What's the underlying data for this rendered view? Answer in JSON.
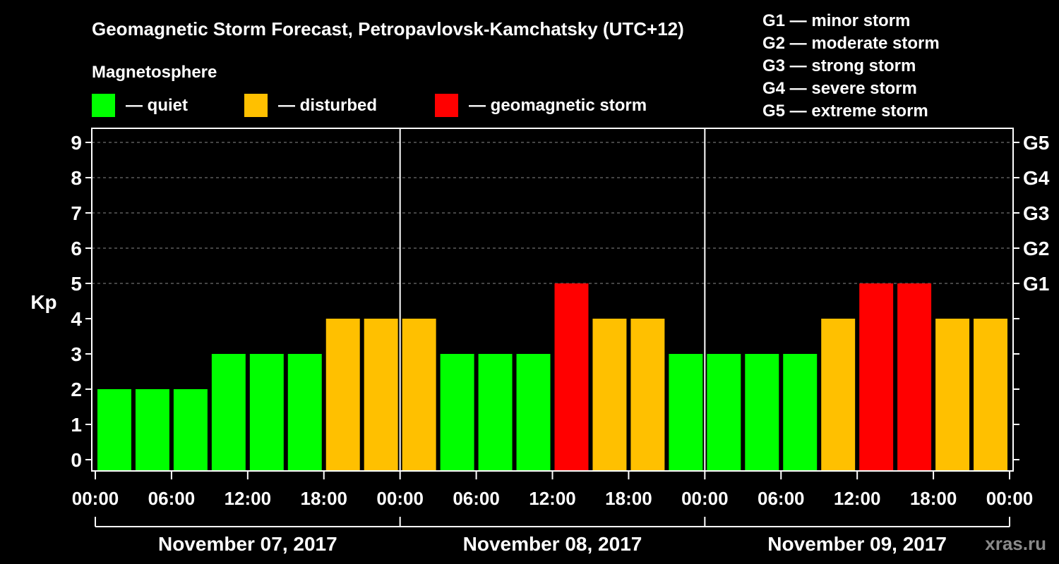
{
  "chart_data": {
    "type": "bar",
    "title": "Geomagnetic Storm Forecast, Petropavlovsk-Kamchatsky (UTC+12)",
    "ylabel": "Kp",
    "ylim": [
      0,
      9
    ],
    "y_ticks": [
      "0",
      "1",
      "2",
      "3",
      "4",
      "5",
      "6",
      "7",
      "8",
      "9"
    ],
    "g_levels": [
      {
        "kp": 5,
        "label": "G1"
      },
      {
        "kp": 6,
        "label": "G2"
      },
      {
        "kp": 7,
        "label": "G3"
      },
      {
        "kp": 8,
        "label": "G4"
      },
      {
        "kp": 9,
        "label": "G5"
      }
    ],
    "x_ticks": [
      "00:00",
      "06:00",
      "12:00",
      "18:00",
      "00:00",
      "06:00",
      "12:00",
      "18:00",
      "00:00",
      "06:00",
      "12:00",
      "18:00",
      "00:00"
    ],
    "days": [
      "November 07, 2017",
      "November 08, 2017",
      "November 09, 2017"
    ],
    "values": [
      2,
      2,
      2,
      3,
      3,
      3,
      4,
      4,
      4,
      3,
      3,
      3,
      5,
      4,
      4,
      3,
      3,
      3,
      3,
      4,
      5,
      5,
      4,
      4
    ],
    "colors": {
      "quiet": "#00ff00",
      "disturbed": "#ffc000",
      "storm": "#ff0000"
    },
    "legend_title": "Magnetosphere",
    "legend": [
      {
        "key": "quiet",
        "label": "— quiet"
      },
      {
        "key": "disturbed",
        "label": "— disturbed"
      },
      {
        "key": "storm",
        "label": "— geomagnetic storm"
      }
    ],
    "g_legend": [
      "G1 — minor storm",
      "G2 — moderate storm",
      "G3 — strong storm",
      "G4 — severe storm",
      "G5 — extreme storm"
    ],
    "watermark": "xras.ru"
  }
}
